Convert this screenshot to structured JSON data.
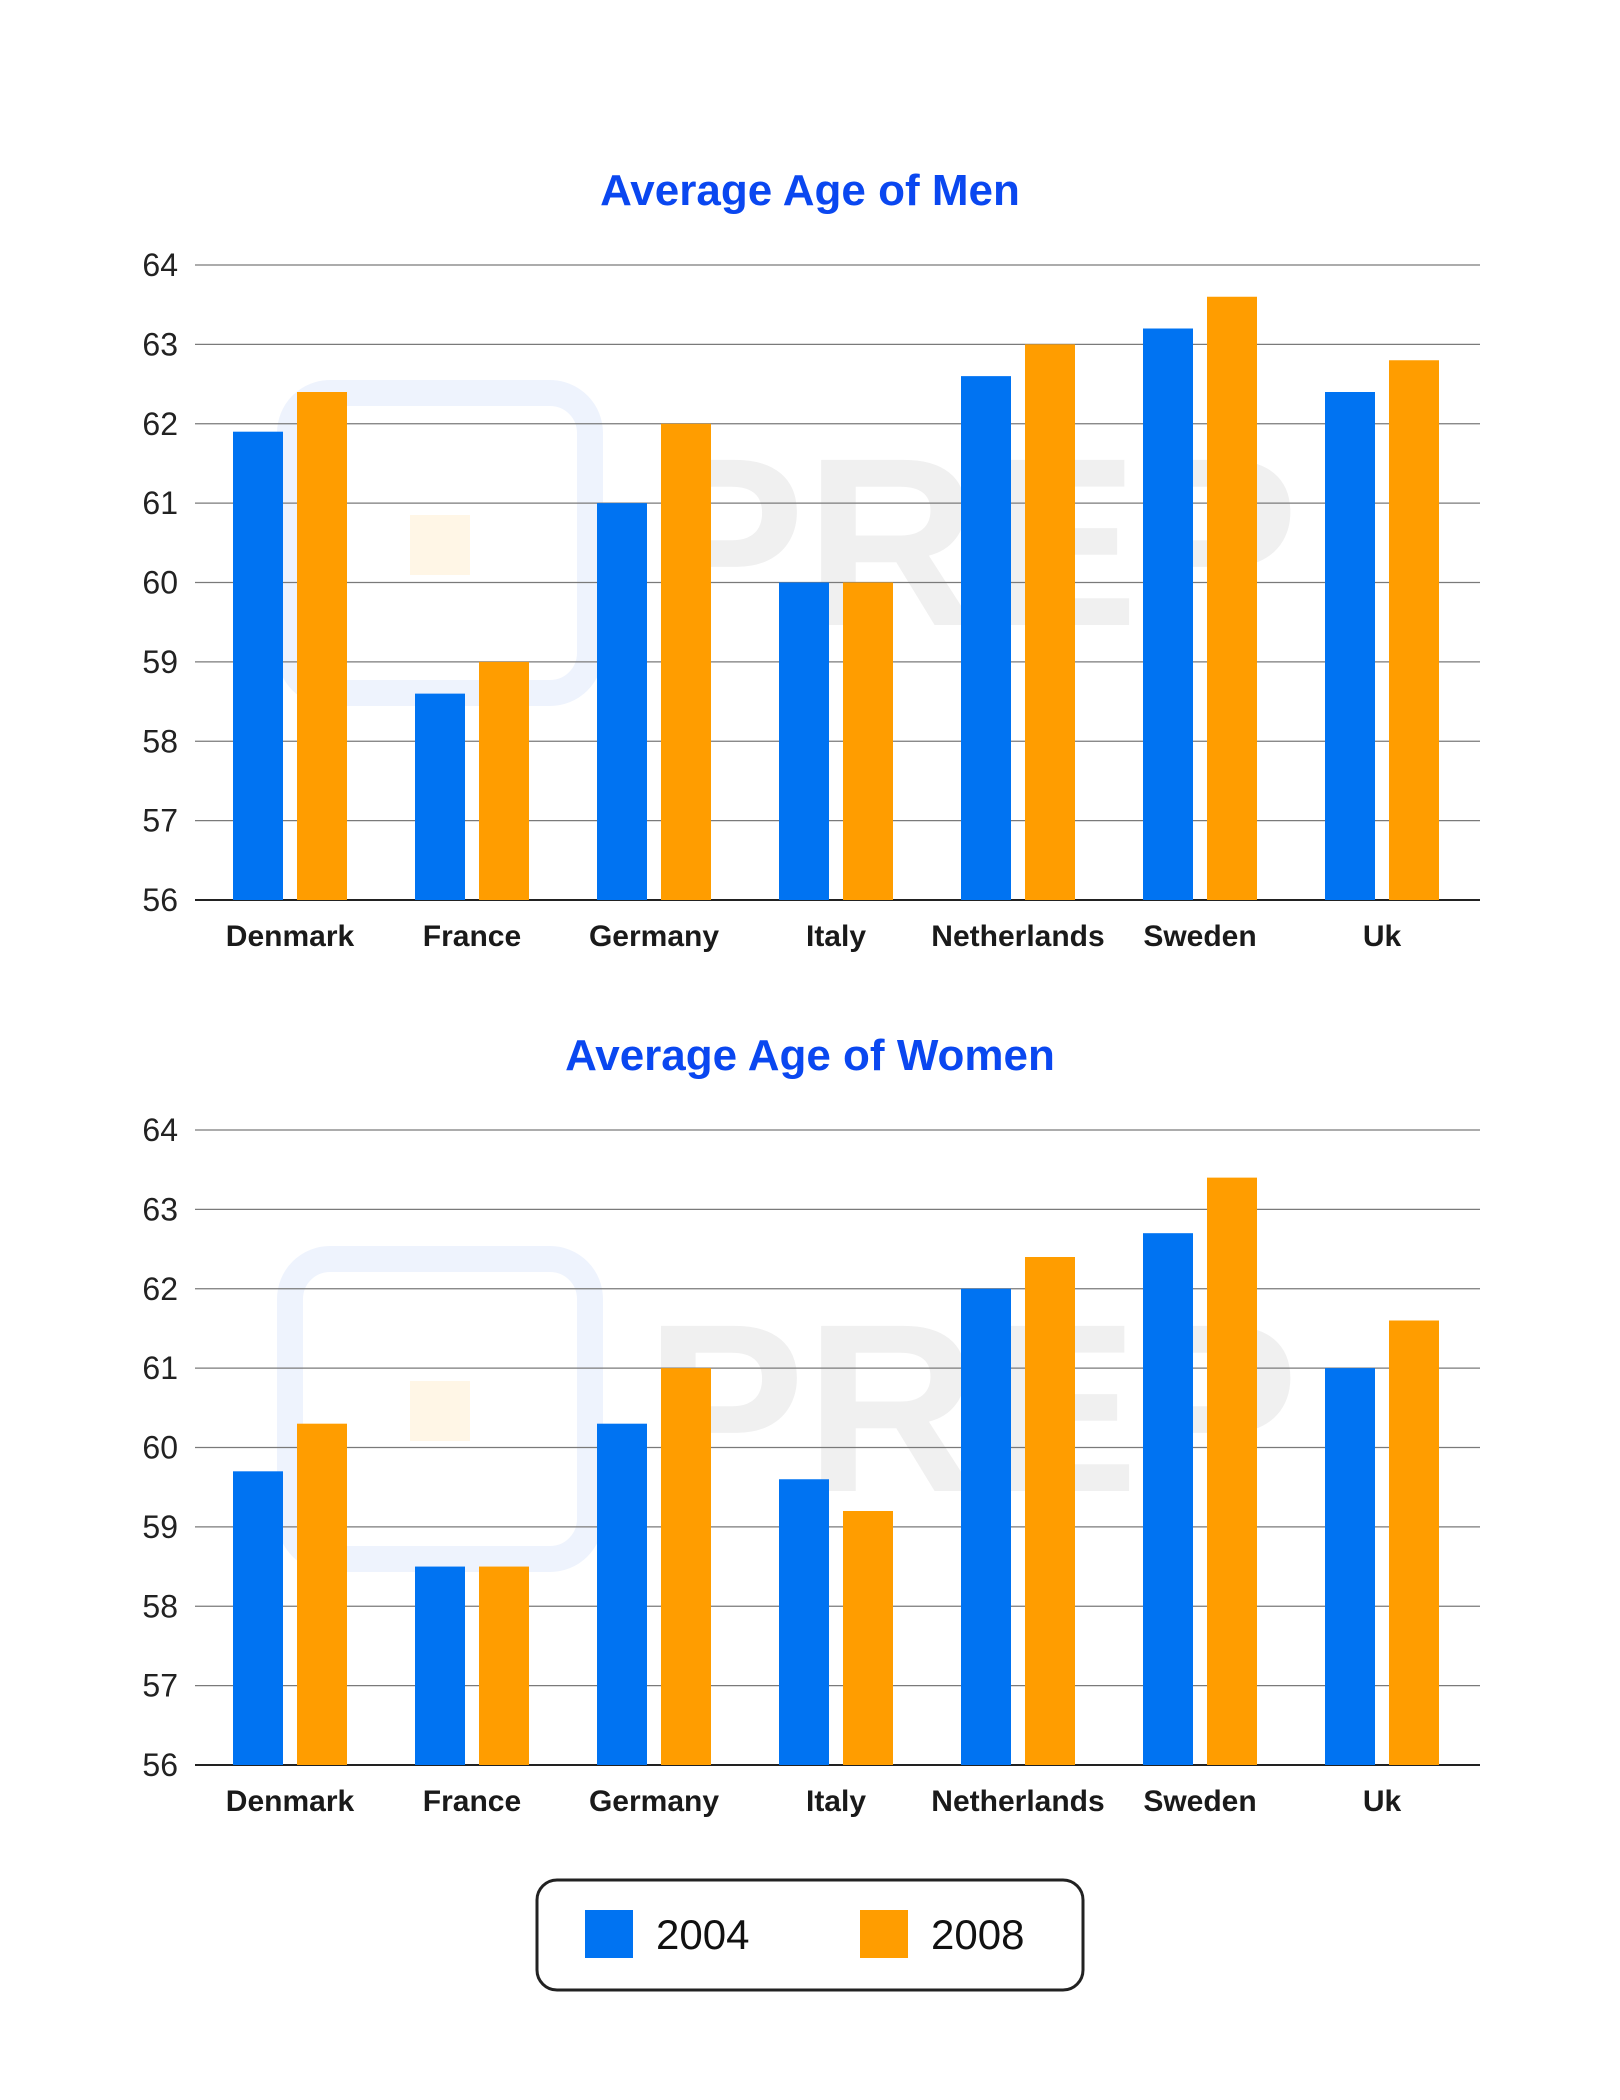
{
  "colors": {
    "series_2004": "#0073f2",
    "series_2008": "#ff9d00",
    "title": "#0a47f0",
    "grid": "#7a7a7a",
    "axis": "#222222"
  },
  "watermark": "PREP",
  "legend": {
    "items": [
      {
        "label": "2004",
        "color_key": "series_2004"
      },
      {
        "label": "2008",
        "color_key": "series_2008"
      }
    ]
  },
  "chart_data": [
    {
      "type": "bar",
      "title": "Average Age of Men",
      "categories": [
        "Denmark",
        "France",
        "Germany",
        "Italy",
        "Netherlands",
        "Sweden",
        "Uk"
      ],
      "series": [
        {
          "name": "2004",
          "values": [
            61.9,
            58.6,
            61.0,
            60.0,
            62.6,
            63.2,
            62.4
          ]
        },
        {
          "name": "2008",
          "values": [
            62.4,
            59.0,
            62.0,
            60.0,
            63.0,
            63.6,
            62.8
          ]
        }
      ],
      "ylim": [
        56,
        64
      ],
      "yticks": [
        56,
        57,
        58,
        59,
        60,
        61,
        62,
        63,
        64
      ],
      "xlabel": "",
      "ylabel": "",
      "grid": true
    },
    {
      "type": "bar",
      "title": "Average Age of Women",
      "categories": [
        "Denmark",
        "France",
        "Germany",
        "Italy",
        "Netherlands",
        "Sweden",
        "Uk"
      ],
      "series": [
        {
          "name": "2004",
          "values": [
            59.7,
            58.5,
            60.3,
            59.6,
            62.0,
            62.7,
            61.0
          ]
        },
        {
          "name": "2008",
          "values": [
            60.3,
            58.5,
            61.0,
            59.2,
            62.4,
            63.4,
            61.6
          ]
        }
      ],
      "ylim": [
        56,
        64
      ],
      "yticks": [
        56,
        57,
        58,
        59,
        60,
        61,
        62,
        63,
        64
      ],
      "xlabel": "",
      "ylabel": "",
      "grid": true
    }
  ]
}
